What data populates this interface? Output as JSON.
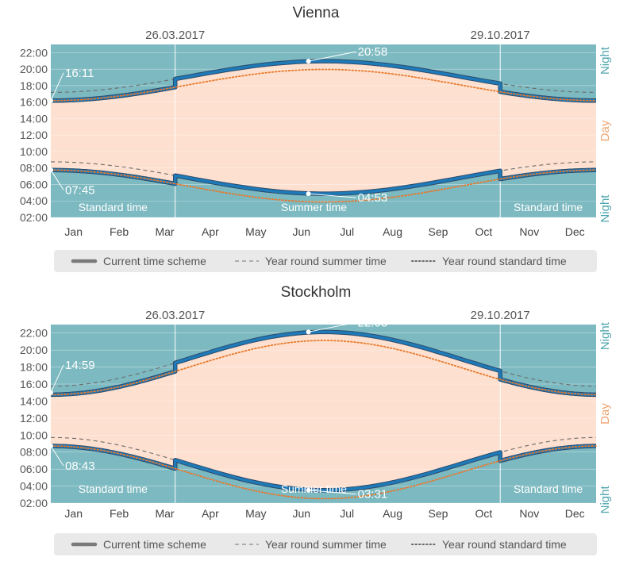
{
  "chart_data": [
    {
      "type": "area",
      "title": "Vienna",
      "transition_dates": [
        "26.03.2017",
        "29.10.2017"
      ],
      "period_labels": [
        "Standard time",
        "Summer time",
        "Standard time"
      ],
      "side_labels": [
        "Night",
        "Day",
        "Night"
      ],
      "categories": [
        "Jan",
        "Feb",
        "Mar",
        "Apr",
        "May",
        "Jun",
        "Jul",
        "Aug",
        "Sep",
        "Oct",
        "Nov",
        "Dec"
      ],
      "yticks": [
        "02:00",
        "04:00",
        "06:00",
        "08:00",
        "10:00",
        "12:00",
        "14:00",
        "16:00",
        "18:00",
        "20:00",
        "22:00"
      ],
      "ylim": [
        2,
        23
      ],
      "annotations": [
        {
          "text": "16:11",
          "x": 1,
          "y": 16.18
        },
        {
          "text": "20:58",
          "x": 173,
          "y": 20.97
        },
        {
          "text": "07:45",
          "x": 1,
          "y": 7.75
        },
        {
          "text": "04:53",
          "x": 173,
          "y": 4.88
        }
      ],
      "sunset_standard": {
        "min": 16.18,
        "max": 19.97
      },
      "sunrise_standard": {
        "min": 3.88,
        "max": 7.75
      },
      "series": [
        {
          "name": "Current time scheme",
          "style": "solid-thick",
          "color": "#1f7ab8"
        },
        {
          "name": "Year round summer time",
          "style": "dashed",
          "color": "#777777"
        },
        {
          "name": "Year round standard time",
          "style": "dotted",
          "color": "#555555"
        }
      ],
      "colors": {
        "night": "#7cb9c0",
        "day": "#fde0cf",
        "current": "#1f7ab8",
        "standard_dots": "#e8782a",
        "accent_night": "#4fa5ac",
        "accent_day": "#f0a36e"
      }
    },
    {
      "type": "area",
      "title": "Stockholm",
      "transition_dates": [
        "26.03.2017",
        "29.10.2017"
      ],
      "period_labels": [
        "Standard time",
        "Summer time",
        "Standard time"
      ],
      "side_labels": [
        "Night",
        "Day",
        "Night"
      ],
      "categories": [
        "Jan",
        "Feb",
        "Mar",
        "Apr",
        "May",
        "Jun",
        "Jul",
        "Aug",
        "Sep",
        "Oct",
        "Nov",
        "Dec"
      ],
      "yticks": [
        "02:00",
        "04:00",
        "06:00",
        "08:00",
        "10:00",
        "12:00",
        "14:00",
        "16:00",
        "18:00",
        "20:00",
        "22:00"
      ],
      "ylim": [
        2,
        23
      ],
      "annotations": [
        {
          "text": "14:59",
          "x": 1,
          "y": 14.98
        },
        {
          "text": "22:08",
          "x": 173,
          "y": 22.13
        },
        {
          "text": "08:43",
          "x": 1,
          "y": 8.72
        },
        {
          "text": "03:31",
          "x": 173,
          "y": 3.52
        }
      ],
      "sunset_standard": {
        "min": 14.75,
        "max": 21.13
      },
      "sunrise_standard": {
        "min": 2.52,
        "max": 8.72
      },
      "series": [
        {
          "name": "Current time scheme",
          "style": "solid-thick",
          "color": "#1f7ab8"
        },
        {
          "name": "Year round summer time",
          "style": "dashed",
          "color": "#777777"
        },
        {
          "name": "Year round standard time",
          "style": "dotted",
          "color": "#555555"
        }
      ],
      "colors": {
        "night": "#7cb9c0",
        "day": "#fde0cf",
        "current": "#1f7ab8",
        "standard_dots": "#e8782a",
        "accent_night": "#4fa5ac",
        "accent_day": "#f0a36e"
      }
    }
  ]
}
